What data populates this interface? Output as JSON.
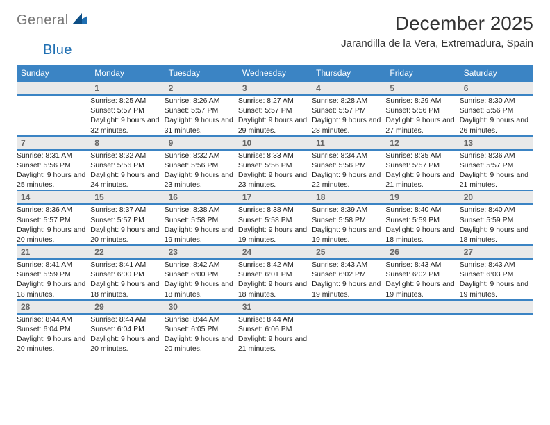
{
  "logo": {
    "general": "General",
    "blue": "Blue"
  },
  "title": "December 2025",
  "location": "Jarandilla de la Vera, Extremadura, Spain",
  "colors": {
    "header_bg": "#3b84c4",
    "header_text": "#ffffff",
    "daynum_bg": "#e9e9e9",
    "daynum_text": "#666666",
    "row_divider": "#3b84c4",
    "body_text": "#222222",
    "logo_gray": "#777777",
    "logo_blue": "#1f6fb2"
  },
  "weekdays": [
    "Sunday",
    "Monday",
    "Tuesday",
    "Wednesday",
    "Thursday",
    "Friday",
    "Saturday"
  ],
  "weeks": [
    {
      "days": [
        {
          "n": "",
          "sunrise": "",
          "sunset": "",
          "daylight": ""
        },
        {
          "n": "1",
          "sunrise": "Sunrise: 8:25 AM",
          "sunset": "Sunset: 5:57 PM",
          "daylight": "Daylight: 9 hours and 32 minutes."
        },
        {
          "n": "2",
          "sunrise": "Sunrise: 8:26 AM",
          "sunset": "Sunset: 5:57 PM",
          "daylight": "Daylight: 9 hours and 31 minutes."
        },
        {
          "n": "3",
          "sunrise": "Sunrise: 8:27 AM",
          "sunset": "Sunset: 5:57 PM",
          "daylight": "Daylight: 9 hours and 29 minutes."
        },
        {
          "n": "4",
          "sunrise": "Sunrise: 8:28 AM",
          "sunset": "Sunset: 5:57 PM",
          "daylight": "Daylight: 9 hours and 28 minutes."
        },
        {
          "n": "5",
          "sunrise": "Sunrise: 8:29 AM",
          "sunset": "Sunset: 5:56 PM",
          "daylight": "Daylight: 9 hours and 27 minutes."
        },
        {
          "n": "6",
          "sunrise": "Sunrise: 8:30 AM",
          "sunset": "Sunset: 5:56 PM",
          "daylight": "Daylight: 9 hours and 26 minutes."
        }
      ]
    },
    {
      "days": [
        {
          "n": "7",
          "sunrise": "Sunrise: 8:31 AM",
          "sunset": "Sunset: 5:56 PM",
          "daylight": "Daylight: 9 hours and 25 minutes."
        },
        {
          "n": "8",
          "sunrise": "Sunrise: 8:32 AM",
          "sunset": "Sunset: 5:56 PM",
          "daylight": "Daylight: 9 hours and 24 minutes."
        },
        {
          "n": "9",
          "sunrise": "Sunrise: 8:32 AM",
          "sunset": "Sunset: 5:56 PM",
          "daylight": "Daylight: 9 hours and 23 minutes."
        },
        {
          "n": "10",
          "sunrise": "Sunrise: 8:33 AM",
          "sunset": "Sunset: 5:56 PM",
          "daylight": "Daylight: 9 hours and 23 minutes."
        },
        {
          "n": "11",
          "sunrise": "Sunrise: 8:34 AM",
          "sunset": "Sunset: 5:56 PM",
          "daylight": "Daylight: 9 hours and 22 minutes."
        },
        {
          "n": "12",
          "sunrise": "Sunrise: 8:35 AM",
          "sunset": "Sunset: 5:57 PM",
          "daylight": "Daylight: 9 hours and 21 minutes."
        },
        {
          "n": "13",
          "sunrise": "Sunrise: 8:36 AM",
          "sunset": "Sunset: 5:57 PM",
          "daylight": "Daylight: 9 hours and 21 minutes."
        }
      ]
    },
    {
      "days": [
        {
          "n": "14",
          "sunrise": "Sunrise: 8:36 AM",
          "sunset": "Sunset: 5:57 PM",
          "daylight": "Daylight: 9 hours and 20 minutes."
        },
        {
          "n": "15",
          "sunrise": "Sunrise: 8:37 AM",
          "sunset": "Sunset: 5:57 PM",
          "daylight": "Daylight: 9 hours and 20 minutes."
        },
        {
          "n": "16",
          "sunrise": "Sunrise: 8:38 AM",
          "sunset": "Sunset: 5:58 PM",
          "daylight": "Daylight: 9 hours and 19 minutes."
        },
        {
          "n": "17",
          "sunrise": "Sunrise: 8:38 AM",
          "sunset": "Sunset: 5:58 PM",
          "daylight": "Daylight: 9 hours and 19 minutes."
        },
        {
          "n": "18",
          "sunrise": "Sunrise: 8:39 AM",
          "sunset": "Sunset: 5:58 PM",
          "daylight": "Daylight: 9 hours and 19 minutes."
        },
        {
          "n": "19",
          "sunrise": "Sunrise: 8:40 AM",
          "sunset": "Sunset: 5:59 PM",
          "daylight": "Daylight: 9 hours and 18 minutes."
        },
        {
          "n": "20",
          "sunrise": "Sunrise: 8:40 AM",
          "sunset": "Sunset: 5:59 PM",
          "daylight": "Daylight: 9 hours and 18 minutes."
        }
      ]
    },
    {
      "days": [
        {
          "n": "21",
          "sunrise": "Sunrise: 8:41 AM",
          "sunset": "Sunset: 5:59 PM",
          "daylight": "Daylight: 9 hours and 18 minutes."
        },
        {
          "n": "22",
          "sunrise": "Sunrise: 8:41 AM",
          "sunset": "Sunset: 6:00 PM",
          "daylight": "Daylight: 9 hours and 18 minutes."
        },
        {
          "n": "23",
          "sunrise": "Sunrise: 8:42 AM",
          "sunset": "Sunset: 6:00 PM",
          "daylight": "Daylight: 9 hours and 18 minutes."
        },
        {
          "n": "24",
          "sunrise": "Sunrise: 8:42 AM",
          "sunset": "Sunset: 6:01 PM",
          "daylight": "Daylight: 9 hours and 18 minutes."
        },
        {
          "n": "25",
          "sunrise": "Sunrise: 8:43 AM",
          "sunset": "Sunset: 6:02 PM",
          "daylight": "Daylight: 9 hours and 19 minutes."
        },
        {
          "n": "26",
          "sunrise": "Sunrise: 8:43 AM",
          "sunset": "Sunset: 6:02 PM",
          "daylight": "Daylight: 9 hours and 19 minutes."
        },
        {
          "n": "27",
          "sunrise": "Sunrise: 8:43 AM",
          "sunset": "Sunset: 6:03 PM",
          "daylight": "Daylight: 9 hours and 19 minutes."
        }
      ]
    },
    {
      "days": [
        {
          "n": "28",
          "sunrise": "Sunrise: 8:44 AM",
          "sunset": "Sunset: 6:04 PM",
          "daylight": "Daylight: 9 hours and 20 minutes."
        },
        {
          "n": "29",
          "sunrise": "Sunrise: 8:44 AM",
          "sunset": "Sunset: 6:04 PM",
          "daylight": "Daylight: 9 hours and 20 minutes."
        },
        {
          "n": "30",
          "sunrise": "Sunrise: 8:44 AM",
          "sunset": "Sunset: 6:05 PM",
          "daylight": "Daylight: 9 hours and 20 minutes."
        },
        {
          "n": "31",
          "sunrise": "Sunrise: 8:44 AM",
          "sunset": "Sunset: 6:06 PM",
          "daylight": "Daylight: 9 hours and 21 minutes."
        },
        {
          "n": "",
          "sunrise": "",
          "sunset": "",
          "daylight": ""
        },
        {
          "n": "",
          "sunrise": "",
          "sunset": "",
          "daylight": ""
        },
        {
          "n": "",
          "sunrise": "",
          "sunset": "",
          "daylight": ""
        }
      ]
    }
  ]
}
